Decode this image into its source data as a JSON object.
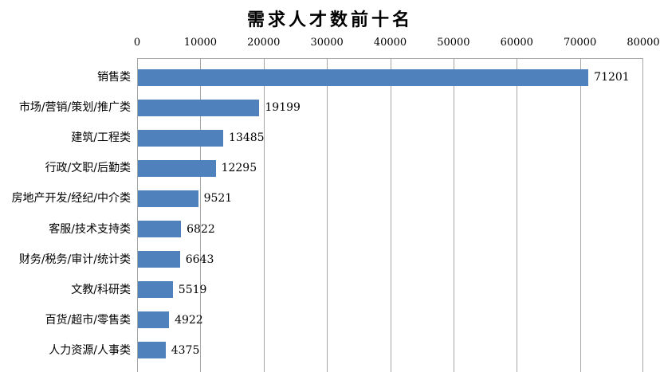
{
  "chart_data": {
    "type": "bar",
    "orientation": "horizontal",
    "title": "需求人才数前十名",
    "categories": [
      "销售类",
      "市场/营销/策划/推广类",
      "建筑/工程类",
      "行政/文职/后勤类",
      "房地产开发/经纪/中介类",
      "客服/技术支持类",
      "财务/税务/审计/统计类",
      "文教/科研类",
      "百货/超市/零售类",
      "人力资源/人事类"
    ],
    "values": [
      71201,
      19199,
      13485,
      12295,
      9521,
      6822,
      6643,
      5519,
      4922,
      4375
    ],
    "value_labels_shown": true,
    "xlabel": "",
    "ylabel": "",
    "xlim": [
      0,
      80000
    ],
    "x_ticks": [
      0,
      10000,
      20000,
      30000,
      40000,
      50000,
      60000,
      70000,
      80000
    ],
    "x_tick_labels": [
      "0",
      "10000",
      "20000",
      "30000",
      "40000",
      "50000",
      "60000",
      "70000",
      "80000"
    ],
    "grid": true,
    "legend": false,
    "colors": {
      "bar": "#4F81BD",
      "grid": "#A6A6A6",
      "text": "#000000",
      "background": "#FFFFFF"
    }
  }
}
